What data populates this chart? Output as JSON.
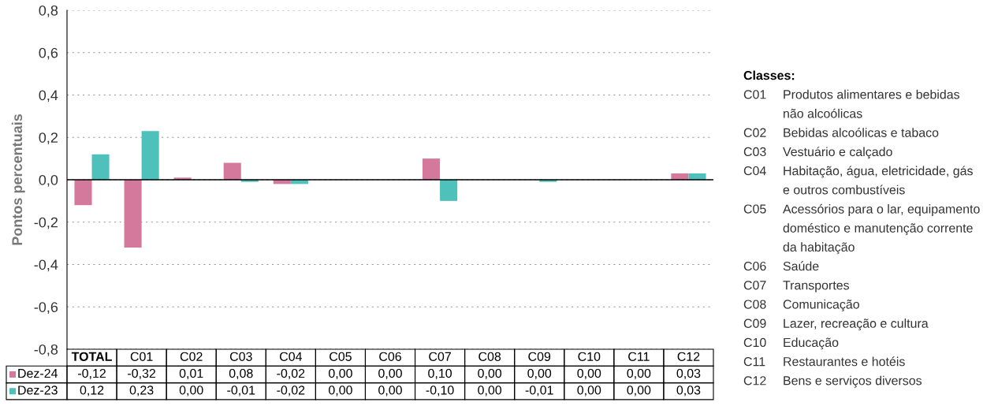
{
  "chart_data": {
    "type": "bar",
    "ylabel": "Pontos percentuais",
    "categories": [
      "TOTAL",
      "C01",
      "C02",
      "C03",
      "C04",
      "C05",
      "C06",
      "C07",
      "C08",
      "C09",
      "C10",
      "C11",
      "C12"
    ],
    "series": [
      {
        "name": "Dez-24",
        "color": "#d4789c",
        "values": [
          -0.12,
          -0.32,
          0.01,
          0.08,
          -0.02,
          0.0,
          0.0,
          0.1,
          0.0,
          0.0,
          0.0,
          0.0,
          0.03
        ],
        "value_labels": [
          "-0,12",
          "-0,32",
          "0,01",
          "0,08",
          "-0,02",
          "0,00",
          "0,00",
          "0,10",
          "0,00",
          "0,00",
          "0,00",
          "0,00",
          "0,03"
        ]
      },
      {
        "name": "Dez-23",
        "color": "#4fc1bb",
        "values": [
          0.12,
          0.23,
          0.0,
          -0.01,
          -0.02,
          0.0,
          0.0,
          -0.1,
          0.0,
          -0.01,
          0.0,
          0.0,
          0.03
        ],
        "value_labels": [
          "0,12",
          "0,23",
          "0,00",
          "-0,01",
          "-0,02",
          "0,00",
          "0,00",
          "-0,10",
          "0,00",
          "-0,01",
          "0,00",
          "0,00",
          "0,03"
        ]
      }
    ],
    "ylim": [
      -0.8,
      0.8
    ],
    "yticks": [
      {
        "value": -0.8,
        "label": "-0,8"
      },
      {
        "value": -0.6,
        "label": "-0,6"
      },
      {
        "value": -0.4,
        "label": "-0,4"
      },
      {
        "value": -0.2,
        "label": "-0,2"
      },
      {
        "value": 0.0,
        "label": "0,0"
      },
      {
        "value": 0.2,
        "label": "0,2"
      },
      {
        "value": 0.4,
        "label": "0,4"
      },
      {
        "value": 0.6,
        "label": "0,6"
      },
      {
        "value": 0.8,
        "label": "0,8"
      }
    ],
    "ref_lines": [
      {
        "axis": "y",
        "value": 0,
        "color": "#000000",
        "line_style": "solid"
      }
    ],
    "grid": "y",
    "legend": "bottom left",
    "annotations": [
      "Classes:",
      "C01 Produtos alimentares e bebidas não alcoólicas",
      "C02 Bebidas alcoólicas e tabaco",
      "C03 Vestuário e calçado",
      "C04 Habitação, água, eletricidade, gás e outros combustíveis",
      "C05 Acessórios para o lar, equipamento doméstico e manutenção corrente da habitação",
      "C06 Saúde",
      "C07 Transportes",
      "C08 Comunicação",
      "C09 Lazer, recreação e cultura",
      "C10 Educação",
      "C11 Restaurantes e hotéis",
      "C12 Bens e serviços diversos"
    ]
  }
}
